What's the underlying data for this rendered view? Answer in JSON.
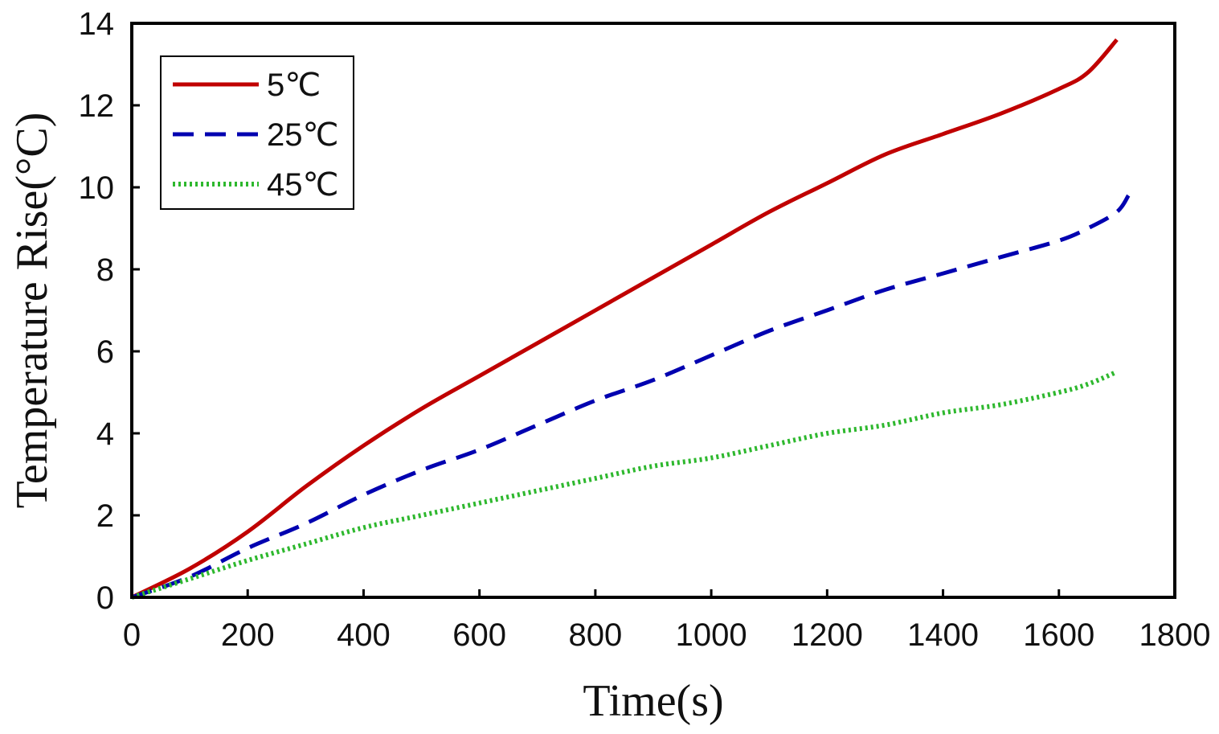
{
  "chart_data": {
    "type": "line",
    "title": "",
    "xlabel": "Time(s)",
    "ylabel": "Temperature Rise(°C)",
    "xlim": [
      0,
      1800
    ],
    "ylim": [
      0,
      14
    ],
    "xticks": [
      0,
      200,
      400,
      600,
      800,
      1000,
      1200,
      1400,
      1600,
      1800
    ],
    "yticks": [
      0,
      2,
      4,
      6,
      8,
      10,
      12,
      14
    ],
    "grid": false,
    "legend_position": "top-left",
    "series": [
      {
        "name": "5℃",
        "color": "#c00000",
        "style": "solid",
        "x": [
          0,
          100,
          200,
          300,
          400,
          500,
          600,
          700,
          800,
          900,
          1000,
          1100,
          1200,
          1300,
          1400,
          1500,
          1600,
          1650,
          1700
        ],
        "y": [
          0,
          0.7,
          1.6,
          2.7,
          3.7,
          4.6,
          5.4,
          6.2,
          7.0,
          7.8,
          8.6,
          9.4,
          10.1,
          10.8,
          11.3,
          11.8,
          12.4,
          12.8,
          13.6
        ]
      },
      {
        "name": "25℃",
        "color": "#0000b0",
        "style": "dashed",
        "x": [
          0,
          100,
          200,
          300,
          400,
          500,
          600,
          700,
          800,
          900,
          1000,
          1100,
          1200,
          1300,
          1400,
          1500,
          1600,
          1650,
          1700,
          1720
        ],
        "y": [
          0,
          0.5,
          1.2,
          1.8,
          2.5,
          3.1,
          3.6,
          4.2,
          4.8,
          5.3,
          5.9,
          6.5,
          7.0,
          7.5,
          7.9,
          8.3,
          8.7,
          9.0,
          9.4,
          9.8
        ]
      },
      {
        "name": "45℃",
        "color": "#2eb82e",
        "style": "dotted",
        "x": [
          0,
          100,
          200,
          300,
          400,
          500,
          600,
          700,
          800,
          900,
          1000,
          1100,
          1200,
          1300,
          1400,
          1500,
          1600,
          1650,
          1700
        ],
        "y": [
          0,
          0.45,
          0.9,
          1.3,
          1.7,
          2.0,
          2.3,
          2.6,
          2.9,
          3.2,
          3.4,
          3.7,
          4.0,
          4.2,
          4.5,
          4.7,
          5.0,
          5.2,
          5.5
        ]
      }
    ]
  }
}
